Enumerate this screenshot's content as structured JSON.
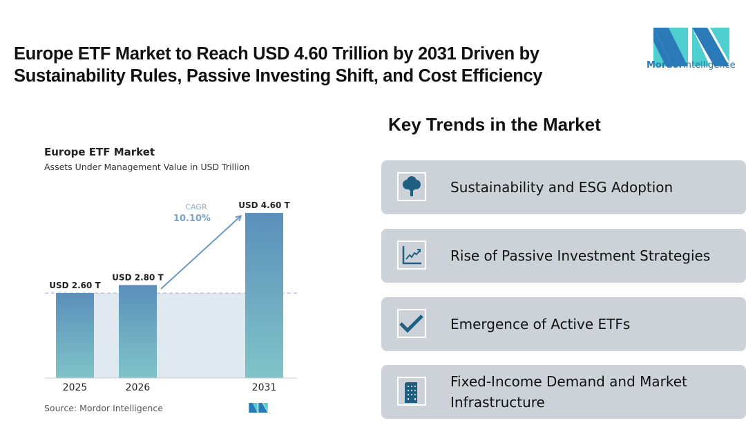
{
  "headline": "Europe ETF Market to Reach USD 4.60 Trillion by 2031 Driven by Sustainability Rules, Passive Investing Shift, and Cost Efficiency",
  "logo": {
    "text_bold": "Mordor",
    "text_light": "Intelligence"
  },
  "chart_data": {
    "type": "bar",
    "title": "Europe ETF Market",
    "subtitle": "Assets Under Management Value in USD Trillion",
    "categories": [
      "2025",
      "2026",
      "2031"
    ],
    "values": [
      2.6,
      2.8,
      4.6
    ],
    "data_labels": [
      "USD 2.60 T",
      "USD 2.80 T",
      "USD 4.60 T"
    ],
    "annotation": {
      "label": "CAGR",
      "value": "10.10%"
    },
    "colors": {
      "bar_top": "#5b8fba",
      "bar_bottom": "#80c4c8",
      "arrow": "#6b98bf",
      "shade": "#e0e8f0"
    },
    "source": "Source:  Mordor Intelligence"
  },
  "trends": {
    "title": "Key Trends in the Market",
    "items": [
      {
        "label": "Sustainability and ESG Adoption",
        "icon": "tree-icon"
      },
      {
        "label": "Rise of Passive Investment Strategies",
        "icon": "line-chart-icon"
      },
      {
        "label": "Emergence of Active ETFs",
        "icon": "checkmark-icon"
      },
      {
        "label": "Fixed-Income Demand and Market Infrastructure",
        "icon": "building-icon"
      }
    ],
    "icon_color": "#1f5f82"
  }
}
